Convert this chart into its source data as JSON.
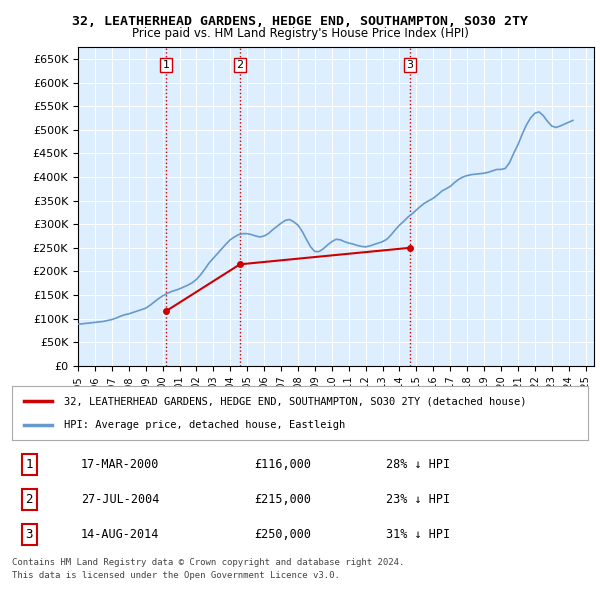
{
  "title1": "32, LEATHERHEAD GARDENS, HEDGE END, SOUTHAMPTON, SO30 2TY",
  "title2": "Price paid vs. HM Land Registry's House Price Index (HPI)",
  "legend_property": "32, LEATHERHEAD GARDENS, HEDGE END, SOUTHAMPTON, SO30 2TY (detached house)",
  "legend_hpi": "HPI: Average price, detached house, Eastleigh",
  "footer1": "Contains HM Land Registry data © Crown copyright and database right 2024.",
  "footer2": "This data is licensed under the Open Government Licence v3.0.",
  "transactions": [
    {
      "num": 1,
      "date": "17-MAR-2000",
      "price": "£116,000",
      "pct": "28% ↓ HPI"
    },
    {
      "num": 2,
      "date": "27-JUL-2004",
      "price": "£215,000",
      "pct": "23% ↓ HPI"
    },
    {
      "num": 3,
      "date": "14-AUG-2014",
      "price": "£250,000",
      "pct": "31% ↓ HPI"
    }
  ],
  "property_color": "#cc0000",
  "hpi_color": "#6699cc",
  "dashed_line_color": "#cc0000",
  "ylim": [
    0,
    675000
  ],
  "yticks": [
    0,
    50000,
    100000,
    150000,
    200000,
    250000,
    300000,
    350000,
    400000,
    450000,
    500000,
    550000,
    600000,
    650000
  ],
  "background_color": "#ddeeff",
  "plot_bg": "#ddeeff",
  "hpi_data": {
    "years": [
      1995.0,
      1995.25,
      1995.5,
      1995.75,
      1996.0,
      1996.25,
      1996.5,
      1996.75,
      1997.0,
      1997.25,
      1997.5,
      1997.75,
      1998.0,
      1998.25,
      1998.5,
      1998.75,
      1999.0,
      1999.25,
      1999.5,
      1999.75,
      2000.0,
      2000.25,
      2000.5,
      2000.75,
      2001.0,
      2001.25,
      2001.5,
      2001.75,
      2002.0,
      2002.25,
      2002.5,
      2002.75,
      2003.0,
      2003.25,
      2003.5,
      2003.75,
      2004.0,
      2004.25,
      2004.5,
      2004.75,
      2005.0,
      2005.25,
      2005.5,
      2005.75,
      2006.0,
      2006.25,
      2006.5,
      2006.75,
      2007.0,
      2007.25,
      2007.5,
      2007.75,
      2008.0,
      2008.25,
      2008.5,
      2008.75,
      2009.0,
      2009.25,
      2009.5,
      2009.75,
      2010.0,
      2010.25,
      2010.5,
      2010.75,
      2011.0,
      2011.25,
      2011.5,
      2011.75,
      2012.0,
      2012.25,
      2012.5,
      2012.75,
      2013.0,
      2013.25,
      2013.5,
      2013.75,
      2014.0,
      2014.25,
      2014.5,
      2014.75,
      2015.0,
      2015.25,
      2015.5,
      2015.75,
      2016.0,
      2016.25,
      2016.5,
      2016.75,
      2017.0,
      2017.25,
      2017.5,
      2017.75,
      2018.0,
      2018.25,
      2018.5,
      2018.75,
      2019.0,
      2019.25,
      2019.5,
      2019.75,
      2020.0,
      2020.25,
      2020.5,
      2020.75,
      2021.0,
      2021.25,
      2021.5,
      2021.75,
      2022.0,
      2022.25,
      2022.5,
      2022.75,
      2023.0,
      2023.25,
      2023.5,
      2023.75,
      2024.0,
      2024.25
    ],
    "values": [
      88000,
      89000,
      90000,
      91000,
      92000,
      93000,
      94000,
      96000,
      98000,
      101000,
      105000,
      108000,
      110000,
      113000,
      116000,
      119000,
      122000,
      128000,
      135000,
      142000,
      148000,
      153000,
      157000,
      160000,
      163000,
      167000,
      171000,
      176000,
      183000,
      193000,
      205000,
      218000,
      228000,
      238000,
      248000,
      258000,
      267000,
      273000,
      278000,
      280000,
      280000,
      278000,
      275000,
      273000,
      275000,
      280000,
      288000,
      295000,
      302000,
      308000,
      310000,
      305000,
      298000,
      285000,
      268000,
      252000,
      242000,
      242000,
      248000,
      256000,
      263000,
      268000,
      267000,
      263000,
      260000,
      258000,
      255000,
      253000,
      252000,
      254000,
      257000,
      260000,
      263000,
      268000,
      277000,
      288000,
      298000,
      306000,
      315000,
      322000,
      330000,
      338000,
      345000,
      350000,
      355000,
      362000,
      370000,
      375000,
      380000,
      388000,
      395000,
      400000,
      403000,
      405000,
      406000,
      407000,
      408000,
      410000,
      413000,
      416000,
      416000,
      418000,
      430000,
      450000,
      468000,
      490000,
      510000,
      525000,
      535000,
      538000,
      530000,
      518000,
      508000,
      505000,
      508000,
      512000,
      516000,
      520000
    ]
  },
  "property_data": {
    "years": [
      2000.21,
      2004.57,
      2014.62
    ],
    "values": [
      116000,
      215000,
      250000
    ]
  },
  "vlines": [
    {
      "x": 2000.21,
      "label": "1"
    },
    {
      "x": 2004.57,
      "label": "2"
    },
    {
      "x": 2014.62,
      "label": "3"
    }
  ]
}
